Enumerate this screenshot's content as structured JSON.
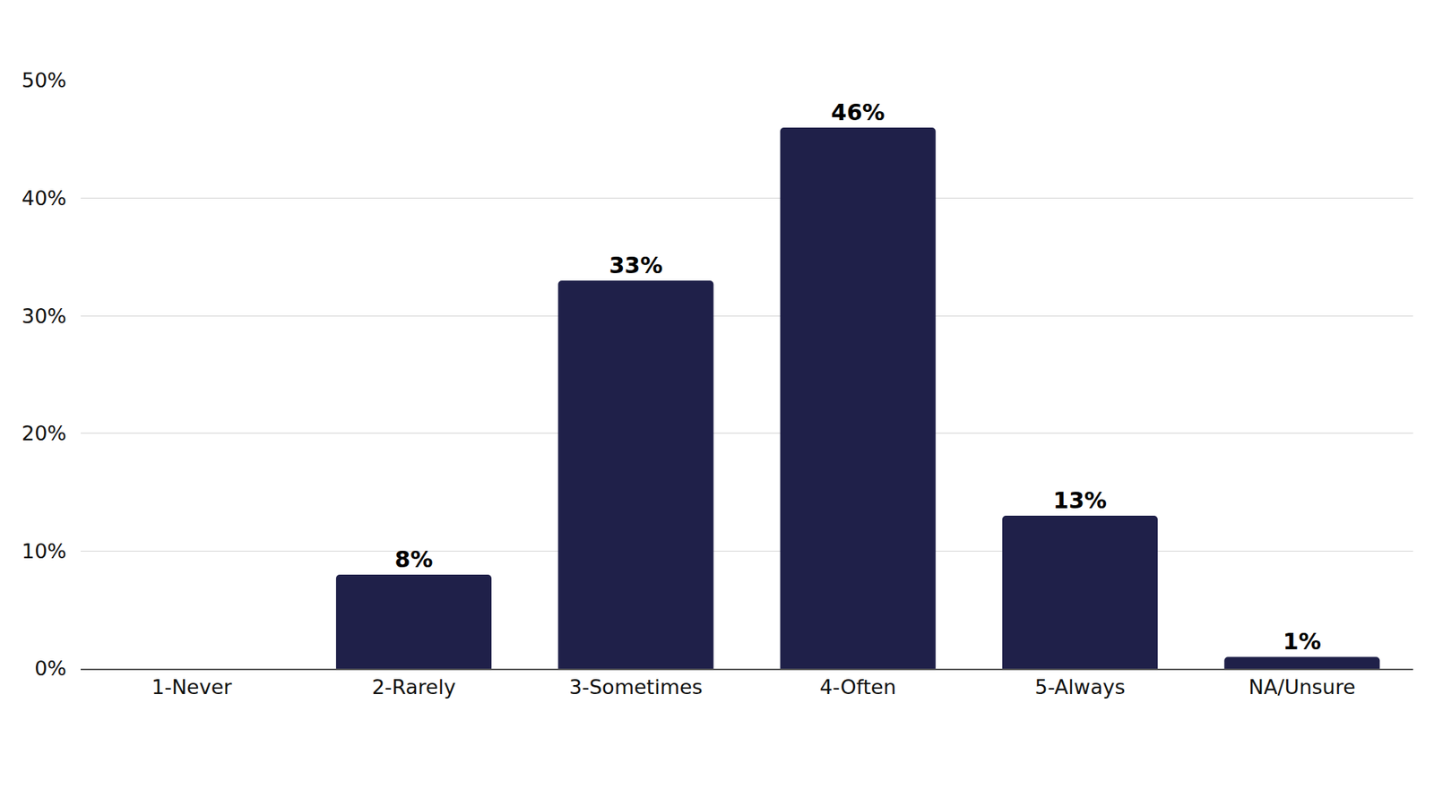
{
  "chart_data": {
    "type": "bar",
    "categories": [
      "1-Never",
      "2-Rarely",
      "3-Sometimes",
      "4-Often",
      "5-Always",
      "NA/Unsure"
    ],
    "values": [
      0,
      8,
      33,
      46,
      13,
      1
    ],
    "value_labels": [
      null,
      "8%",
      "33%",
      "46%",
      "13%",
      "1%"
    ],
    "data_labels": true,
    "color": "#1f2049",
    "ylim": [
      0,
      50
    ],
    "yticks": [
      {
        "value": 0,
        "label": "0%"
      },
      {
        "value": 10,
        "label": "10%"
      },
      {
        "value": 20,
        "label": "20%"
      },
      {
        "value": 30,
        "label": "30%"
      },
      {
        "value": 40,
        "label": "40%"
      },
      {
        "value": 50,
        "label": "50%"
      }
    ],
    "grid": true
  }
}
